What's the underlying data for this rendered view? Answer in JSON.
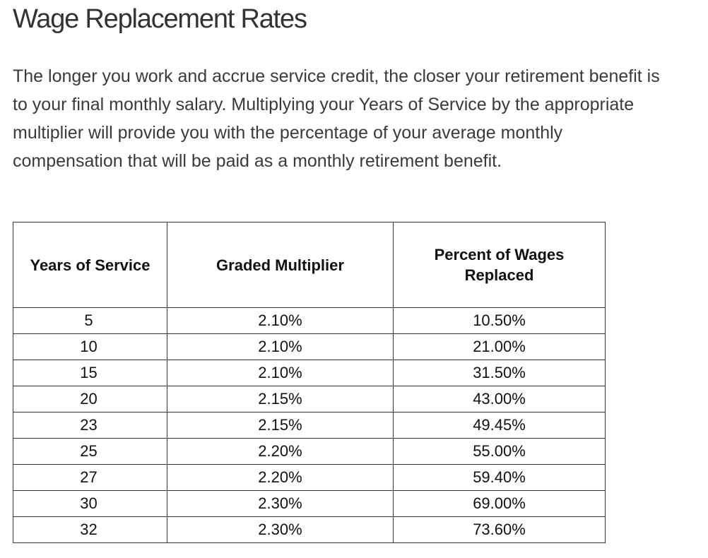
{
  "page": {
    "title": "Wage Replacement Rates",
    "intro": "The longer you work and accrue service credit, the closer your retirement benefit is to your final monthly salary. Multiplying your Years of Service by the appropriate multiplier will provide you with the percentage of your average monthly compensation that will be paid as a monthly retirement benefit."
  },
  "table": {
    "headers": [
      "Years of Service",
      "Graded Multiplier",
      "Percent of Wages Replaced"
    ],
    "rows": [
      [
        "5",
        "2.10%",
        "10.50%"
      ],
      [
        "10",
        "2.10%",
        "21.00%"
      ],
      [
        "15",
        "2.10%",
        "31.50%"
      ],
      [
        "20",
        "2.15%",
        "43.00%"
      ],
      [
        "23",
        "2.15%",
        "49.45%"
      ],
      [
        "25",
        "2.20%",
        "55.00%"
      ],
      [
        "27",
        "2.20%",
        "59.40%"
      ],
      [
        "30",
        "2.30%",
        "69.00%"
      ],
      [
        "32",
        "2.30%",
        "73.60%"
      ]
    ]
  }
}
